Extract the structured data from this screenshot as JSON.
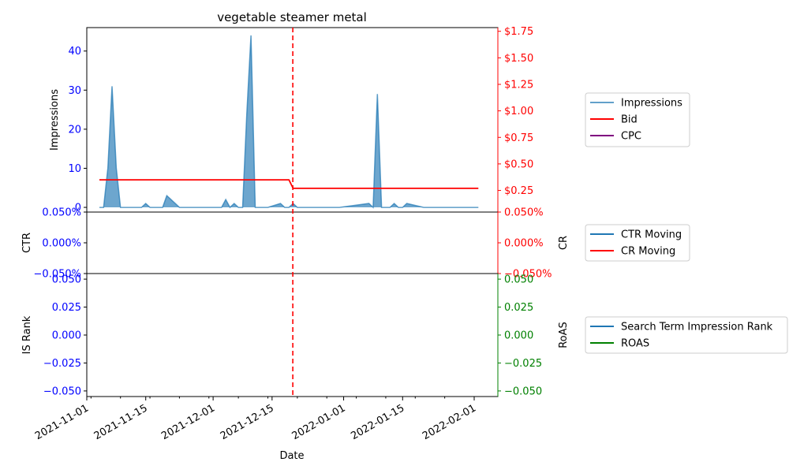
{
  "chart_data": {
    "type": "area",
    "title": "vegetable steamer metal",
    "xlabel": "Date",
    "x_ticks": [
      "2021-11-01",
      "2021-11-15",
      "2021-12-01",
      "2021-12-15",
      "2022-01-01",
      "2022-01-15",
      "2022-02-01"
    ],
    "event_marker": {
      "date": "2021-12-20",
      "color": "#ff0000",
      "style": "dashed"
    },
    "colors": {
      "impressions": "#1f77b4",
      "bid": "#ff0000",
      "cpc": "#800080",
      "ctr": "#1f77b4",
      "cr": "#ff0000",
      "rank": "#1f77b4",
      "roas": "#008000",
      "left_ticks": "#0000ff",
      "right_ticks_top": "#ff0000",
      "right_ticks_bottom": "#008000"
    },
    "panels": [
      {
        "ylabel_left": "Impressions",
        "ylabel_right": "",
        "y_left_range": [
          -1.2,
          46
        ],
        "y_right_range": [
          0.046,
          1.785
        ],
        "left_ticks": [
          "0",
          "10",
          "20",
          "30",
          "40"
        ],
        "right_ticks": [
          "$0.25",
          "$0.50",
          "$0.75",
          "$1.00",
          "$1.25",
          "$1.50",
          "$1.75"
        ],
        "legend": [
          "Impressions",
          "Bid",
          "CPC"
        ],
        "series": [
          {
            "name": "Impressions",
            "kind": "area",
            "x": [
              "2021-11-04",
              "2021-11-05",
              "2021-11-06",
              "2021-11-07",
              "2021-11-08",
              "2021-11-09",
              "2021-11-10",
              "2021-11-11",
              "2021-11-12",
              "2021-11-13",
              "2021-11-14",
              "2021-11-15",
              "2021-11-16",
              "2021-11-17",
              "2021-11-18",
              "2021-11-19",
              "2021-11-20",
              "2021-11-21",
              "2021-11-22",
              "2021-11-23",
              "2021-11-24",
              "2021-11-25",
              "2021-11-26",
              "2021-11-27",
              "2021-11-28",
              "2021-11-29",
              "2021-11-30",
              "2021-12-01",
              "2021-12-02",
              "2021-12-03",
              "2021-12-04",
              "2021-12-05",
              "2021-12-06",
              "2021-12-07",
              "2021-12-08",
              "2021-12-09",
              "2021-12-10",
              "2021-12-11",
              "2021-12-12",
              "2021-12-13",
              "2021-12-14",
              "2021-12-17",
              "2021-12-18",
              "2021-12-19",
              "2021-12-20",
              "2021-12-21",
              "2021-12-31",
              "2022-01-07",
              "2022-01-08",
              "2022-01-09",
              "2022-01-10",
              "2022-01-11",
              "2022-01-12",
              "2022-01-13",
              "2022-01-14",
              "2022-01-15",
              "2022-01-16",
              "2022-01-20",
              "2022-01-24",
              "2022-01-30",
              "2022-02-02"
            ],
            "values": [
              0,
              0,
              10,
              31,
              10,
              0,
              0,
              0,
              0,
              0,
              0,
              1,
              0,
              0,
              0,
              0,
              3,
              2,
              1,
              0,
              0,
              0,
              0,
              0,
              0,
              0,
              0,
              0,
              0,
              0,
              2,
              0,
              1,
              0,
              0,
              24,
              44,
              0,
              0,
              0,
              0,
              1,
              0,
              0,
              1,
              0,
              0,
              1,
              0,
              29,
              0,
              0,
              0,
              1,
              0,
              0,
              1,
              0,
              0,
              0,
              0
            ]
          },
          {
            "name": "Bid",
            "kind": "line",
            "x": [
              "2021-11-04",
              "2021-12-19",
              "2021-12-20",
              "2022-02-02"
            ],
            "values": [
              0.35,
              0.35,
              0.27,
              0.27
            ]
          },
          {
            "name": "CPC",
            "kind": "line",
            "x": [],
            "values": []
          }
        ]
      },
      {
        "ylabel_left": "CTR",
        "ylabel_right": "CR",
        "y_left_range": [
          -0.05,
          0.05
        ],
        "y_right_range": [
          -0.05,
          0.05
        ],
        "left_ticks": [
          "−0.050%",
          "0.000%",
          "0.050%"
        ],
        "right_ticks": [
          "−0.050%",
          "0.000%",
          "0.050%"
        ],
        "legend": [
          "CTR Moving",
          "CR Moving"
        ],
        "series": [
          {
            "name": "CTR Moving",
            "kind": "line",
            "x": [],
            "values": []
          },
          {
            "name": "CR Moving",
            "kind": "line",
            "x": [],
            "values": []
          }
        ]
      },
      {
        "ylabel_left": "IS Rank",
        "ylabel_right": "RoAS",
        "y_left_range": [
          -0.055,
          0.055
        ],
        "y_right_range": [
          -0.055,
          0.055
        ],
        "left_ticks": [
          "−0.050",
          "−0.025",
          "0.000",
          "0.025",
          "0.050"
        ],
        "right_ticks": [
          "−0.050",
          "−0.025",
          "0.000",
          "0.025",
          "0.050"
        ],
        "legend": [
          "Search Term Impression Rank",
          "ROAS"
        ],
        "series": [
          {
            "name": "Search Term Impression Rank",
            "kind": "line",
            "x": [],
            "values": []
          },
          {
            "name": "ROAS",
            "kind": "line",
            "x": [],
            "values": []
          }
        ]
      }
    ]
  }
}
